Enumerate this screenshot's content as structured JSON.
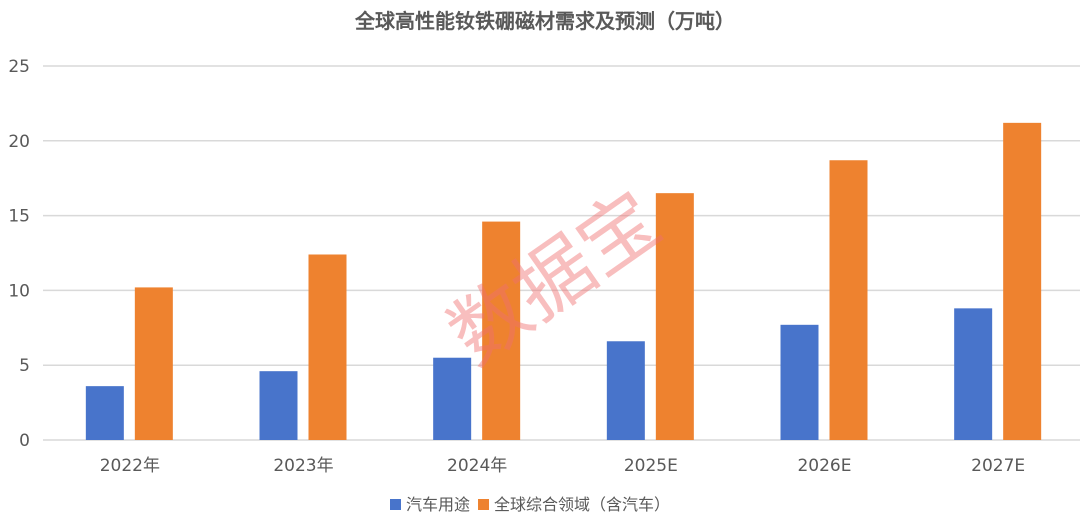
{
  "chart_data": {
    "type": "bar",
    "title": "全球高性能钕铁硼磁材需求及预测（万吨）",
    "categories": [
      "2022年",
      "2023年",
      "2024年",
      "2025E",
      "2026E",
      "2027E"
    ],
    "series": [
      {
        "name": "汽车用途",
        "color": "#4874cb",
        "values": [
          3.6,
          4.6,
          5.5,
          6.6,
          7.7,
          8.8
        ]
      },
      {
        "name": "全球综合领域（含汽车）",
        "color": "#ee822f",
        "values": [
          10.2,
          12.4,
          14.6,
          16.5,
          18.7,
          21.2
        ]
      }
    ],
    "ylim": [
      0,
      25
    ],
    "yticks": [
      0,
      5,
      10,
      15,
      20,
      25
    ],
    "grid": true,
    "legend_position": "bottom",
    "xlabel": "",
    "ylabel": ""
  },
  "watermark": "数据宝"
}
